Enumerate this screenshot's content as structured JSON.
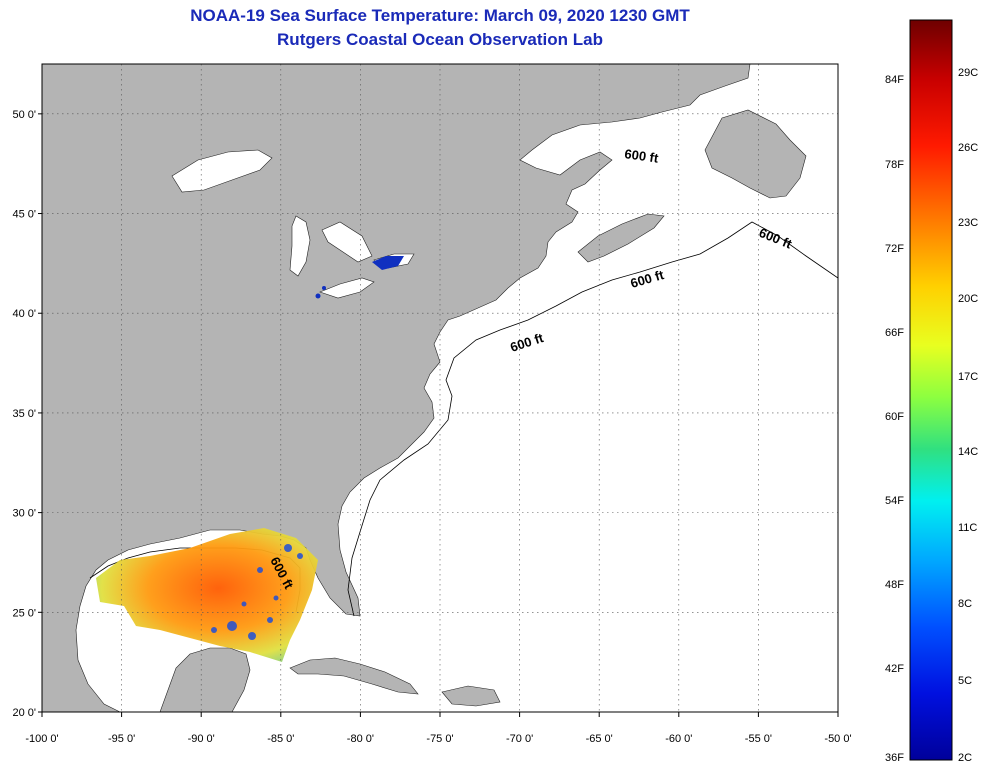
{
  "title": {
    "line1": "NOAA-19 Sea Surface Temperature:  March 09, 2020 1230 GMT",
    "line2": "Rutgers Coastal Ocean Observation Lab"
  },
  "map": {
    "lon_range": [
      -100,
      -50
    ],
    "lat_range": [
      20,
      52.5
    ],
    "lon_ticks": [
      "-100 0'",
      "-95 0'",
      "-90 0'",
      "-85 0'",
      "-80 0'",
      "-75 0'",
      "-70 0'",
      "-65 0'",
      "-60 0'",
      "-55 0'",
      "-50 0'"
    ],
    "lat_ticks": [
      "50 0'",
      "45 0'",
      "40 0'",
      "35 0'",
      "30 0'",
      "25 0'",
      "20 0'"
    ],
    "isobath_label": "600 ft",
    "colors": {
      "land": "#b4b4b4",
      "ocean": "#ffffff",
      "title": "#1a2ab8"
    }
  },
  "colorbar": {
    "fahrenheit_labels": [
      "84F",
      "78F",
      "72F",
      "66F",
      "60F",
      "54F",
      "48F",
      "42F",
      "36F"
    ],
    "celsius_labels": [
      "29C",
      "26C",
      "23C",
      "20C",
      "17C",
      "14C",
      "11C",
      "8C",
      "5C",
      "2C"
    ],
    "gradient": [
      "#6e0000",
      "#c80000",
      "#ff1a00",
      "#ff7a00",
      "#ffd000",
      "#e8ff20",
      "#8cff40",
      "#30e080",
      "#00f0f0",
      "#00a8ff",
      "#0050ff",
      "#0010e0",
      "#00009a"
    ]
  }
}
